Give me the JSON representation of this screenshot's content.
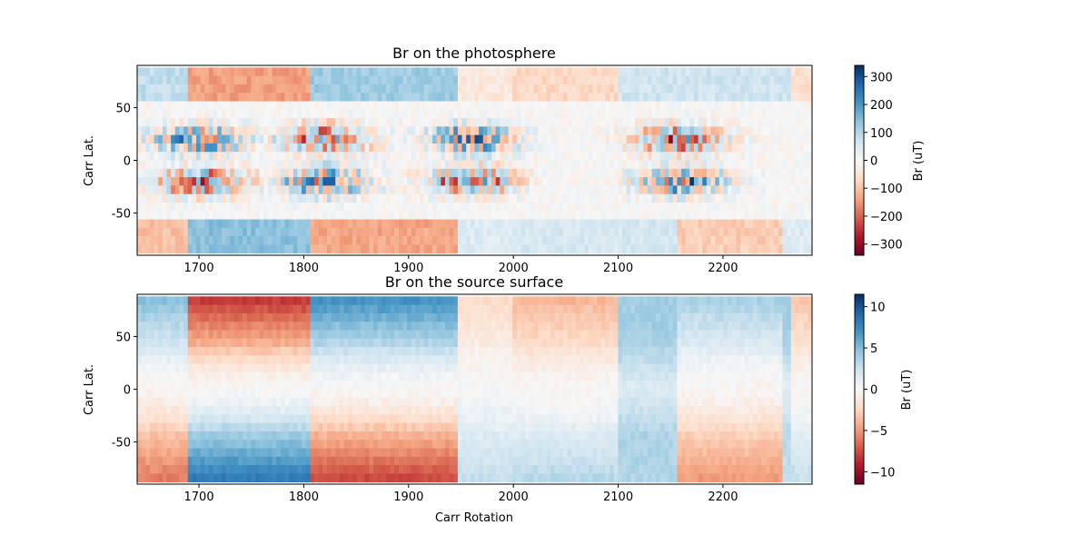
{
  "chart_data": [
    {
      "type": "heatmap",
      "title": "Br on the photosphere",
      "xlabel": "",
      "ylabel": "Carr Lat.",
      "xlim": [
        1641,
        2285
      ],
      "ylim": [
        -90,
        90
      ],
      "data_extent_y": [
        -88,
        88
      ],
      "x_ticks": [
        1700,
        1800,
        1900,
        2000,
        2100,
        2200
      ],
      "y_ticks": [
        50,
        0,
        -50
      ],
      "colormap": "RdBu",
      "colorbar": {
        "label": "Br (uT)",
        "range": [
          -340,
          340
        ],
        "ticks": [
          300,
          200,
          100,
          0,
          -100,
          -200,
          -300
        ]
      },
      "x_tick_labels": [
        "1700",
        "1800",
        "1900",
        "2000",
        "2100",
        "2200"
      ],
      "y_tick_labels": [
        "50",
        "0",
        "-50"
      ],
      "colorbar_tick_labels": [
        "300",
        "200",
        "100",
        "0",
        "−100",
        "−200",
        "−300"
      ]
    },
    {
      "type": "heatmap",
      "title": "Br on the source surface",
      "xlabel": "Carr Rotation",
      "ylabel": "Carr Lat.",
      "xlim": [
        1641,
        2285
      ],
      "ylim": [
        -90,
        90
      ],
      "data_extent_y": [
        -88,
        88
      ],
      "x_ticks": [
        1700,
        1800,
        1900,
        2000,
        2100,
        2200
      ],
      "y_ticks": [
        50,
        0,
        -50
      ],
      "colormap": "RdBu",
      "colorbar": {
        "label": "Br (uT)",
        "range": [
          -11.5,
          11.5
        ],
        "ticks": [
          10,
          5,
          0,
          -5,
          -10
        ]
      },
      "x_tick_labels": [
        "1700",
        "1800",
        "1900",
        "2000",
        "2100",
        "2200"
      ],
      "y_tick_labels": [
        "50",
        "0",
        "-50"
      ],
      "colorbar_tick_labels": [
        "10",
        "5",
        "0",
        "−5",
        "−10"
      ]
    }
  ],
  "colors": {
    "rdbu": [
      "#67001f",
      "#b2182b",
      "#d6604d",
      "#f4a582",
      "#fddbc7",
      "#f7f7f7",
      "#d1e5f0",
      "#92c5de",
      "#4393c3",
      "#2166ac",
      "#053061"
    ]
  }
}
